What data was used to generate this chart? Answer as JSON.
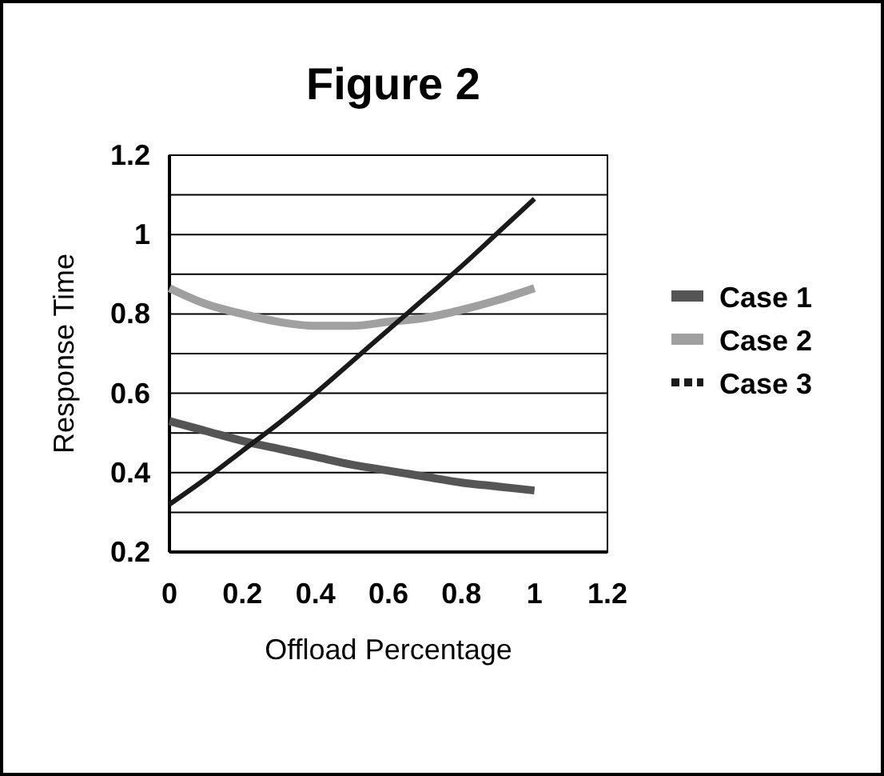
{
  "chart_data": {
    "type": "line",
    "title": "Figure 2",
    "xlabel": "Offload Percentage",
    "ylabel": "Response Time",
    "x": [
      0,
      0.1,
      0.2,
      0.3,
      0.4,
      0.5,
      0.6,
      0.7,
      0.8,
      0.9,
      1
    ],
    "series": [
      {
        "name": "Case 1",
        "color": "#555555",
        "values": [
          0.53,
          0.505,
          0.48,
          0.46,
          0.44,
          0.42,
          0.405,
          0.39,
          0.375,
          0.365,
          0.355
        ]
      },
      {
        "name": "Case 2",
        "color": "#a0a0a0",
        "values": [
          0.865,
          0.825,
          0.8,
          0.78,
          0.77,
          0.77,
          0.78,
          0.79,
          0.81,
          0.835,
          0.865
        ]
      },
      {
        "name": "Case 3",
        "color": "#1a1a1a",
        "values": [
          0.32,
          0.385,
          0.455,
          0.525,
          0.6,
          0.68,
          0.76,
          0.84,
          0.92,
          1.005,
          1.09
        ]
      }
    ],
    "xlim": [
      0,
      1.2
    ],
    "xticks": [
      0,
      0.2,
      0.4,
      0.6,
      0.8,
      1,
      1.2
    ],
    "ylim": [
      0.2,
      1.2
    ],
    "yticks": [
      0.2,
      {
        "value": 0.3,
        "label": null
      },
      0.4,
      {
        "value": 0.5,
        "label": null
      },
      0.6,
      {
        "value": 0.7,
        "label": null
      },
      0.8,
      {
        "value": 0.9,
        "label": null
      },
      1,
      {
        "value": 1.1,
        "label": null
      },
      1.2
    ],
    "grid": "y",
    "legend": "right",
    "marker": "none",
    "line_style": "solid"
  }
}
